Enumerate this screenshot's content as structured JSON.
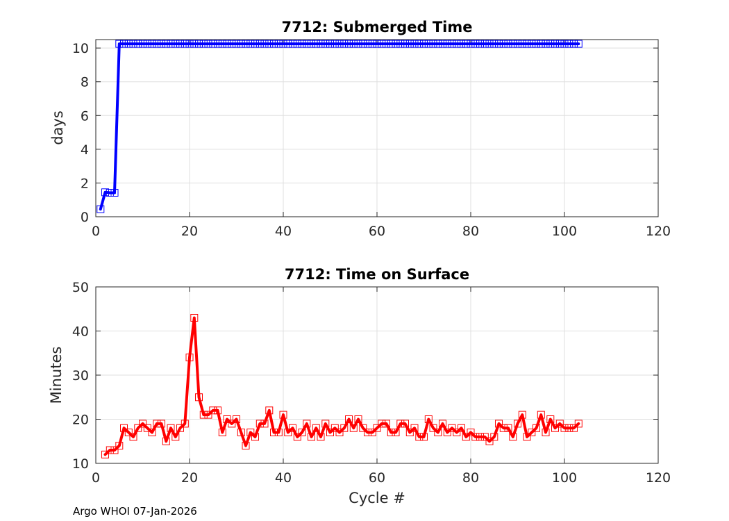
{
  "footer": "Argo WHOI 07-Jan-2026",
  "chart_data": [
    {
      "type": "line",
      "title": "7712: Submerged Time",
      "xlabel": "",
      "ylabel": "days",
      "xlim": [
        0,
        120
      ],
      "ylim": [
        0,
        10.5
      ],
      "xticks": [
        0,
        20,
        40,
        60,
        80,
        100,
        120
      ],
      "yticks": [
        0,
        2,
        4,
        6,
        8,
        10
      ],
      "grid": true,
      "marker": "square",
      "color": "#0000ff",
      "series": [
        {
          "x": [
            1,
            2,
            3,
            4,
            5,
            6,
            7,
            8,
            9,
            10,
            11,
            12,
            13,
            14,
            15,
            16,
            17,
            18,
            19,
            20,
            21,
            22,
            23,
            24,
            25,
            26,
            27,
            28,
            29,
            30,
            31,
            32,
            33,
            34,
            35,
            36,
            37,
            38,
            39,
            40,
            41,
            42,
            43,
            44,
            45,
            46,
            47,
            48,
            49,
            50,
            51,
            52,
            53,
            54,
            55,
            56,
            57,
            58,
            59,
            60,
            61,
            62,
            63,
            64,
            65,
            66,
            67,
            68,
            69,
            70,
            71,
            72,
            73,
            74,
            75,
            76,
            77,
            78,
            79,
            80,
            81,
            82,
            83,
            84,
            85,
            86,
            87,
            88,
            89,
            90,
            91,
            92,
            93,
            94,
            95,
            96,
            97,
            98,
            99,
            100,
            101,
            102,
            103
          ],
          "values": [
            0.45,
            1.45,
            1.42,
            1.42,
            10.25,
            10.25,
            10.25,
            10.25,
            10.25,
            10.25,
            10.25,
            10.25,
            10.25,
            10.25,
            10.25,
            10.25,
            10.25,
            10.25,
            10.25,
            10.25,
            10.25,
            10.25,
            10.25,
            10.25,
            10.25,
            10.25,
            10.25,
            10.25,
            10.25,
            10.25,
            10.25,
            10.25,
            10.25,
            10.25,
            10.25,
            10.25,
            10.25,
            10.25,
            10.25,
            10.25,
            10.25,
            10.25,
            10.25,
            10.25,
            10.25,
            10.25,
            10.25,
            10.25,
            10.25,
            10.25,
            10.25,
            10.25,
            10.25,
            10.25,
            10.25,
            10.25,
            10.25,
            10.25,
            10.25,
            10.25,
            10.25,
            10.25,
            10.25,
            10.25,
            10.25,
            10.25,
            10.25,
            10.25,
            10.25,
            10.25,
            10.25,
            10.25,
            10.25,
            10.25,
            10.25,
            10.25,
            10.25,
            10.25,
            10.25,
            10.25,
            10.25,
            10.25,
            10.25,
            10.25,
            10.25,
            10.25,
            10.25,
            10.25,
            10.25,
            10.25,
            10.25,
            10.25,
            10.25,
            10.25,
            10.25,
            10.25,
            10.25,
            10.25,
            10.25,
            10.25,
            10.25,
            10.25,
            10.25
          ]
        }
      ]
    },
    {
      "type": "line",
      "title": "7712: Time on Surface",
      "xlabel": "Cycle #",
      "ylabel": "Minutes",
      "xlim": [
        0,
        120
      ],
      "ylim": [
        10,
        50
      ],
      "xticks": [
        0,
        20,
        40,
        60,
        80,
        100,
        120
      ],
      "yticks": [
        10,
        20,
        30,
        40,
        50
      ],
      "grid": true,
      "marker": "square",
      "color": "#ff0000",
      "series": [
        {
          "x": [
            2,
            3,
            4,
            5,
            6,
            7,
            8,
            9,
            10,
            11,
            12,
            13,
            14,
            15,
            16,
            17,
            18,
            19,
            20,
            21,
            22,
            23,
            24,
            25,
            26,
            27,
            28,
            29,
            30,
            31,
            32,
            33,
            34,
            35,
            36,
            37,
            38,
            39,
            40,
            41,
            42,
            43,
            44,
            45,
            46,
            47,
            48,
            49,
            50,
            51,
            52,
            53,
            54,
            55,
            56,
            57,
            58,
            59,
            60,
            61,
            62,
            63,
            64,
            65,
            66,
            67,
            68,
            69,
            70,
            71,
            72,
            73,
            74,
            75,
            76,
            77,
            78,
            79,
            80,
            81,
            82,
            83,
            84,
            85,
            86,
            87,
            88,
            89,
            90,
            91,
            92,
            93,
            94,
            95,
            96,
            97,
            98,
            99,
            100,
            101,
            102,
            103
          ],
          "values": [
            12,
            13,
            13,
            14,
            18,
            17,
            16,
            18,
            19,
            18,
            17,
            19,
            19,
            15,
            18,
            16,
            18,
            19,
            34,
            43,
            25,
            21,
            21,
            22,
            22,
            17,
            20,
            19,
            20,
            17,
            14,
            17,
            16,
            19,
            19,
            22,
            17,
            17,
            21,
            17,
            18,
            16,
            17,
            19,
            16,
            18,
            16,
            19,
            17,
            18,
            17,
            18,
            20,
            18,
            20,
            18,
            17,
            17,
            18,
            19,
            19,
            17,
            17,
            19,
            19,
            17,
            18,
            16,
            16,
            20,
            18,
            17,
            19,
            17,
            18,
            17,
            18,
            16,
            17,
            16,
            16,
            16,
            15,
            16,
            19,
            18,
            18,
            16,
            19,
            21,
            16,
            17,
            18,
            21,
            17,
            20,
            18,
            19,
            18,
            18,
            18,
            19
          ]
        }
      ]
    }
  ]
}
